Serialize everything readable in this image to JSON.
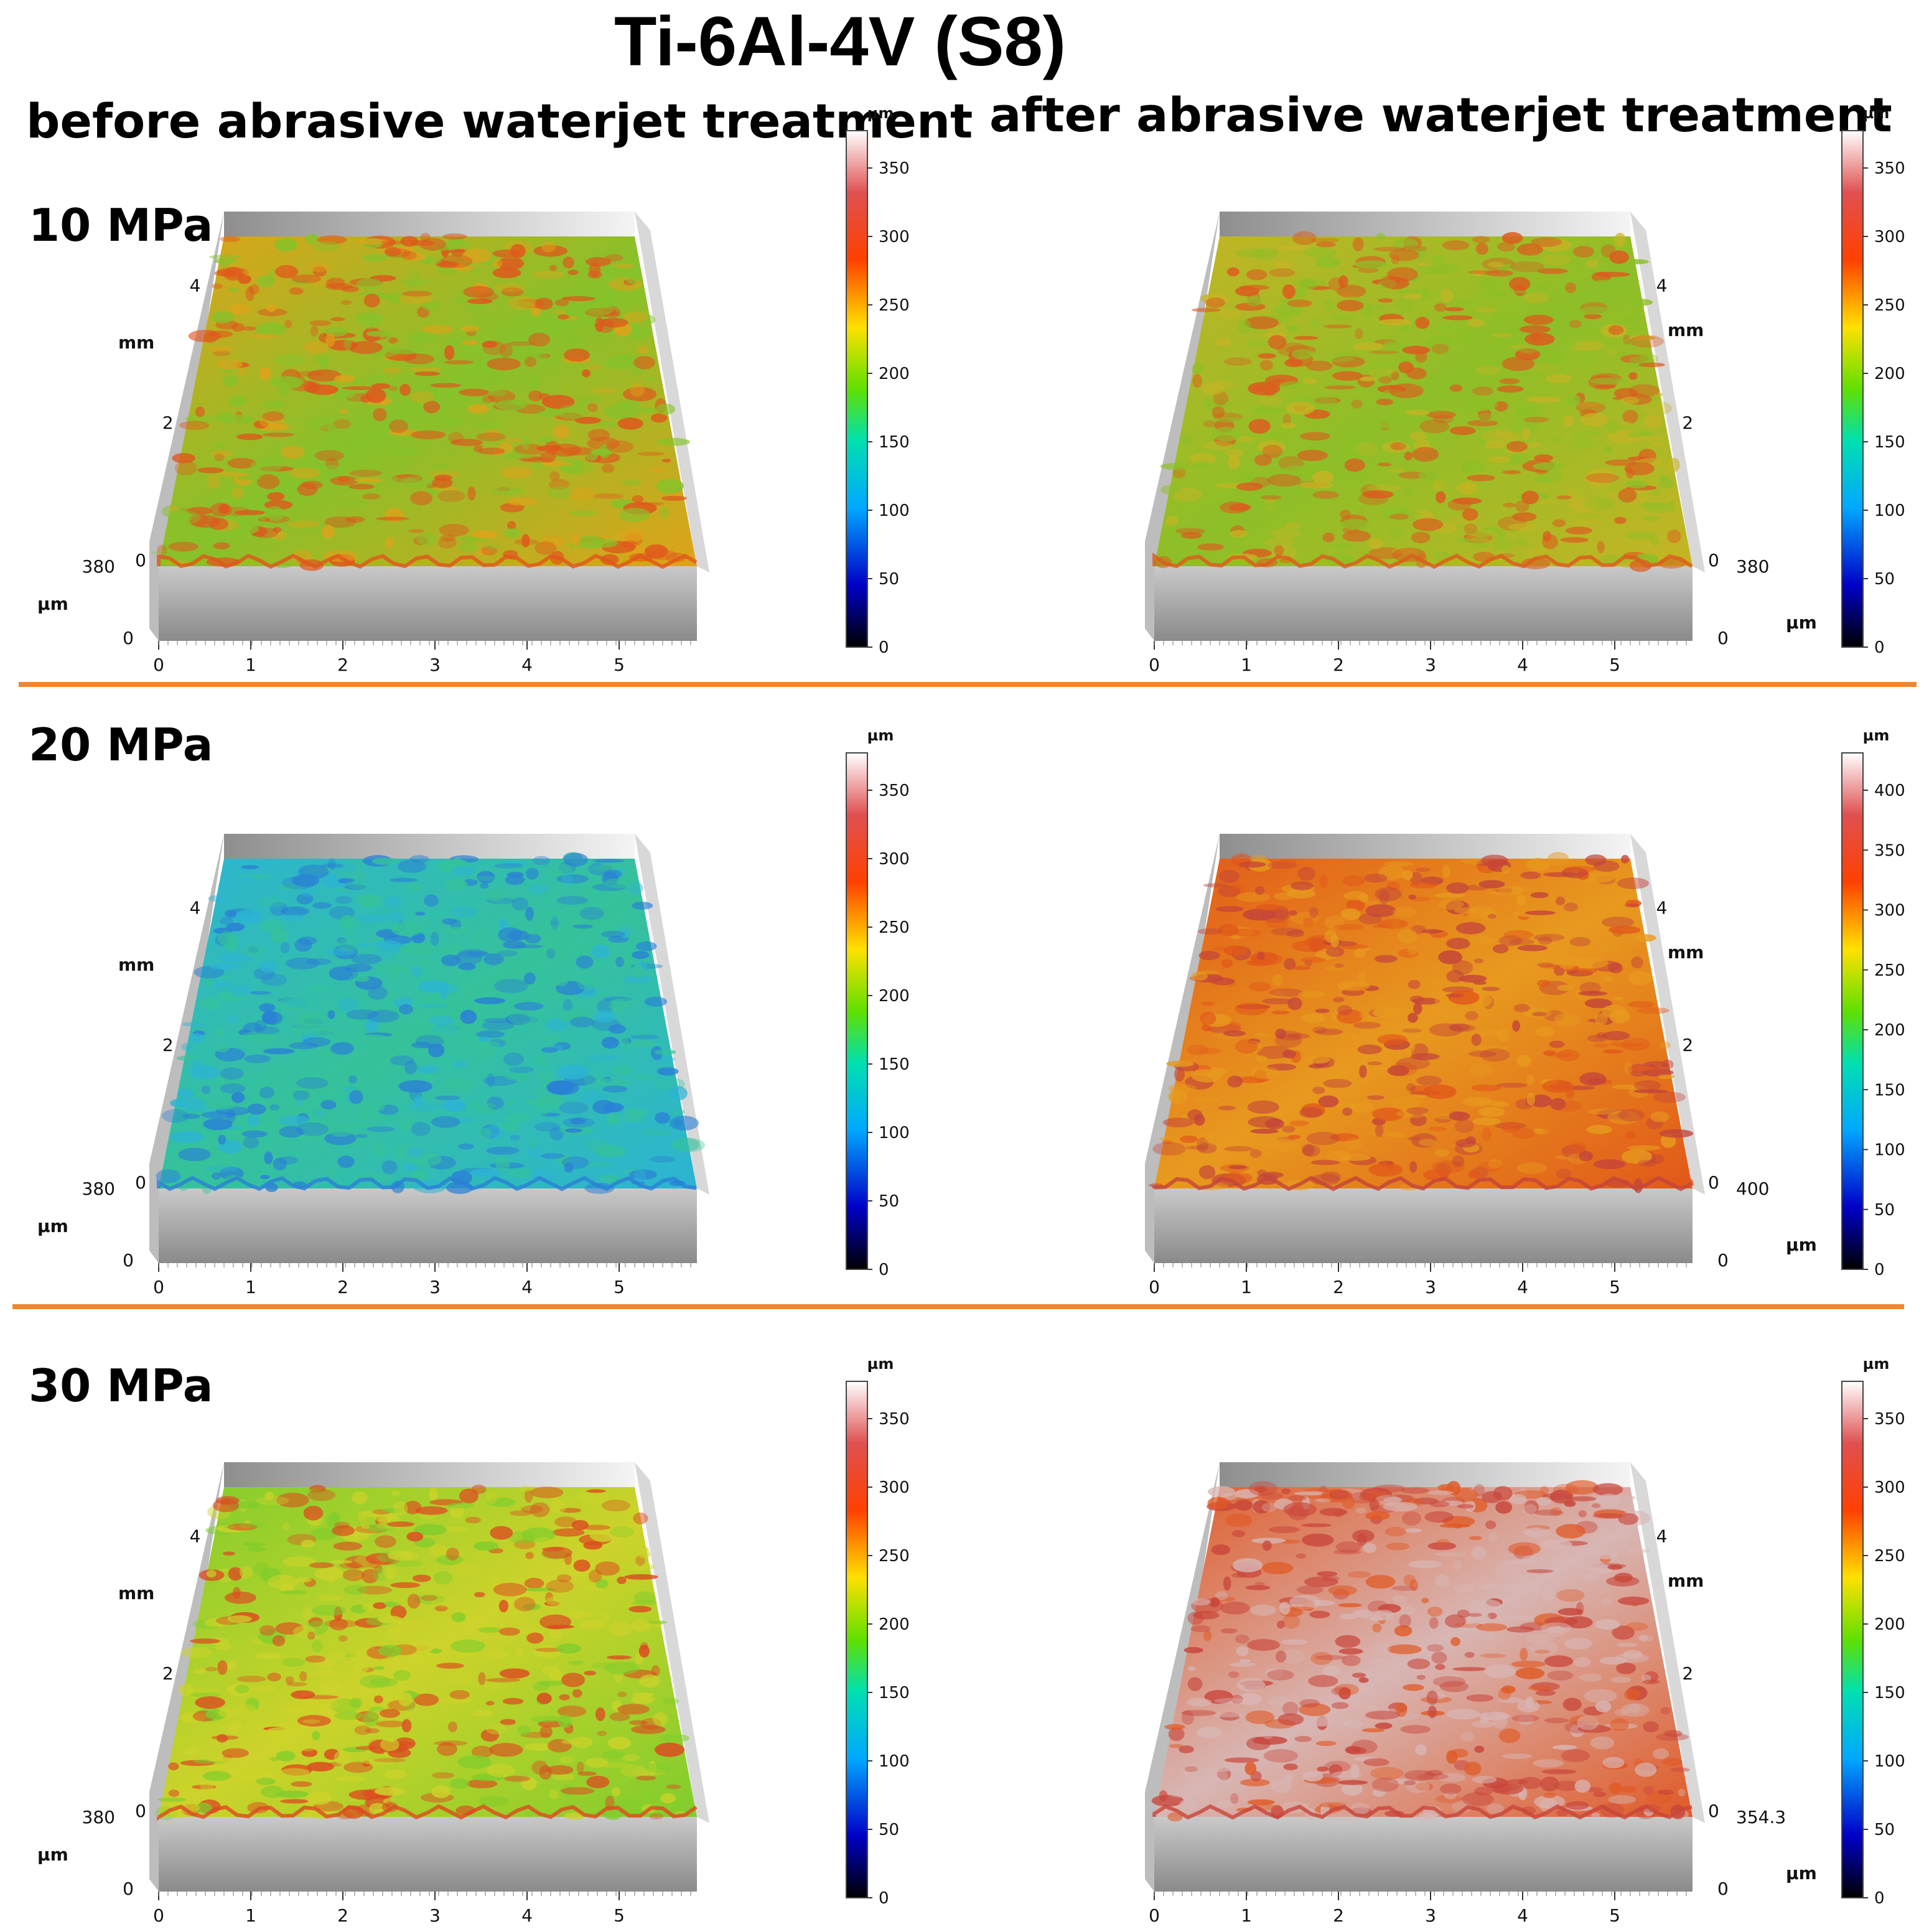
{
  "title": "Ti-6Al-4V (S8)",
  "columns": {
    "before": "before abrasive waterjet treatment",
    "after": "after abrasive waterjet treatment"
  },
  "rows": [
    {
      "label": "10 MPa"
    },
    {
      "label": "20 MPa"
    },
    {
      "label": "30 MPa"
    }
  ],
  "axis": {
    "mm": "mm",
    "um": "µm",
    "x_ticks": [
      "0",
      "1",
      "2",
      "3",
      "4",
      "5"
    ],
    "y_ticks": [
      "0",
      "2",
      "4"
    ]
  },
  "panels": [
    {
      "id": "r1-before",
      "z_top": "380",
      "z_bottom": "0",
      "surface": {
        "base": "#e0a21a",
        "mid": "#86c22a",
        "peak": "#e0561c"
      },
      "colorbar": {
        "unit": "µm",
        "ticks": [
          "350",
          "300",
          "250",
          "200",
          "150",
          "100",
          "50",
          "0"
        ]
      }
    },
    {
      "id": "r1-after",
      "z_top": "380",
      "z_bottom": "0",
      "surface": {
        "base": "#c6b424",
        "mid": "#8dbf27",
        "peak": "#dd5a1e"
      },
      "colorbar": {
        "unit": "µm",
        "ticks": [
          "350",
          "300",
          "250",
          "200",
          "150",
          "100",
          "50",
          "0"
        ]
      }
    },
    {
      "id": "r2-before",
      "z_top": "380",
      "z_bottom": "0",
      "surface": {
        "base": "#2cb4d4",
        "mid": "#35c29a",
        "peak": "#2a7fd6"
      },
      "colorbar": {
        "unit": "µm",
        "ticks": [
          "350",
          "300",
          "250",
          "200",
          "150",
          "100",
          "50",
          "0"
        ]
      }
    },
    {
      "id": "r2-after",
      "z_top": "400",
      "z_bottom": "0",
      "surface": {
        "base": "#e2581a",
        "mid": "#e79a1e",
        "peak": "#c4443a"
      },
      "colorbar": {
        "unit": "µm",
        "ticks": [
          "400",
          "350",
          "300",
          "250",
          "200",
          "150",
          "100",
          "50",
          "0"
        ]
      }
    },
    {
      "id": "r3-before",
      "z_top": "380",
      "z_bottom": "0",
      "surface": {
        "base": "#7fcd2c",
        "mid": "#cdd32a",
        "peak": "#dd4a20"
      },
      "colorbar": {
        "unit": "µm",
        "ticks": [
          "350",
          "300",
          "250",
          "200",
          "150",
          "100",
          "50",
          "0"
        ]
      }
    },
    {
      "id": "r3-after",
      "z_top": "354.3",
      "z_bottom": "0",
      "surface": {
        "base": "#e05a26",
        "mid": "#d8b6b4",
        "peak": "#c8453a"
      },
      "colorbar": {
        "unit": "µm",
        "ticks": [
          "350",
          "300",
          "250",
          "200",
          "150",
          "100",
          "50",
          "0"
        ]
      }
    }
  ]
}
